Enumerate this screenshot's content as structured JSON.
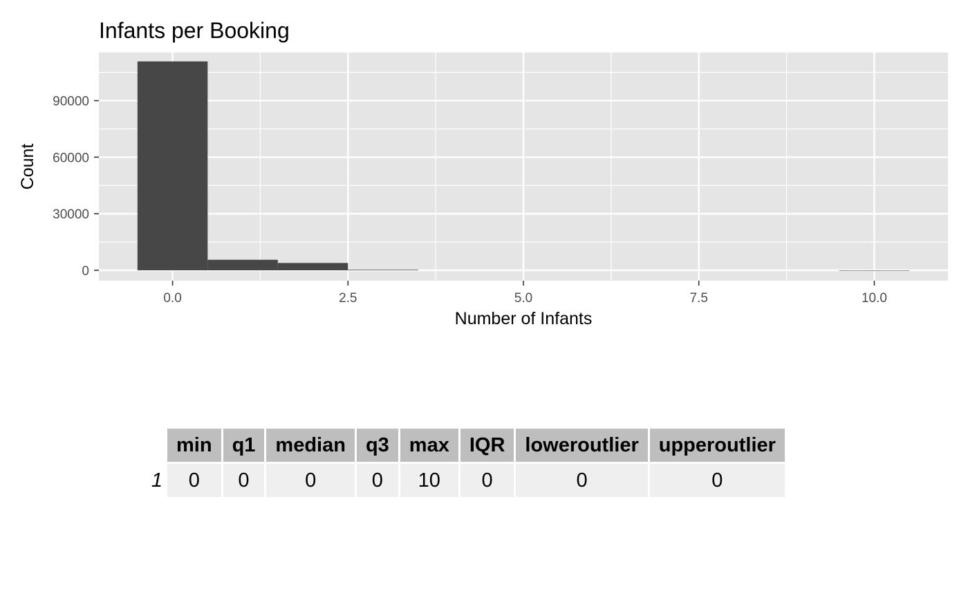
{
  "chart_data": {
    "type": "bar",
    "title": "Infants per Booking",
    "xlabel": "Number of Infants",
    "ylabel": "Count",
    "xlim": [
      -1.05,
      11.05
    ],
    "ylim": [
      -5500,
      115500
    ],
    "x_ticks": [
      0.0,
      2.5,
      5.0,
      7.5,
      10.0
    ],
    "x_tick_labels": [
      "0.0",
      "2.5",
      "5.0",
      "7.5",
      "10.0"
    ],
    "y_ticks": [
      0,
      30000,
      60000,
      90000
    ],
    "y_tick_labels": [
      "0",
      "30000",
      "60000",
      "90000"
    ],
    "bin_width": 1,
    "bins": [
      {
        "x": 0,
        "count": 110800
      },
      {
        "x": 1,
        "count": 5600
      },
      {
        "x": 2,
        "count": 3900
      },
      {
        "x": 3,
        "count": 300
      },
      {
        "x": 4,
        "count": 0
      },
      {
        "x": 5,
        "count": 0
      },
      {
        "x": 6,
        "count": 0
      },
      {
        "x": 7,
        "count": 0
      },
      {
        "x": 8,
        "count": 0
      },
      {
        "x": 9,
        "count": 0
      },
      {
        "x": 10,
        "count": 2
      }
    ],
    "grid": true,
    "colors": {
      "bar": "#474747",
      "panel": "#e5e5e5",
      "grid": "#ffffff"
    }
  },
  "table": {
    "headers": [
      "min",
      "q1",
      "median",
      "q3",
      "max",
      "IQR",
      "loweroutlier",
      "upperoutlier"
    ],
    "rows": [
      {
        "rowname": "1",
        "values": [
          "0",
          "0",
          "0",
          "0",
          "10",
          "0",
          "0",
          "0"
        ]
      }
    ]
  }
}
